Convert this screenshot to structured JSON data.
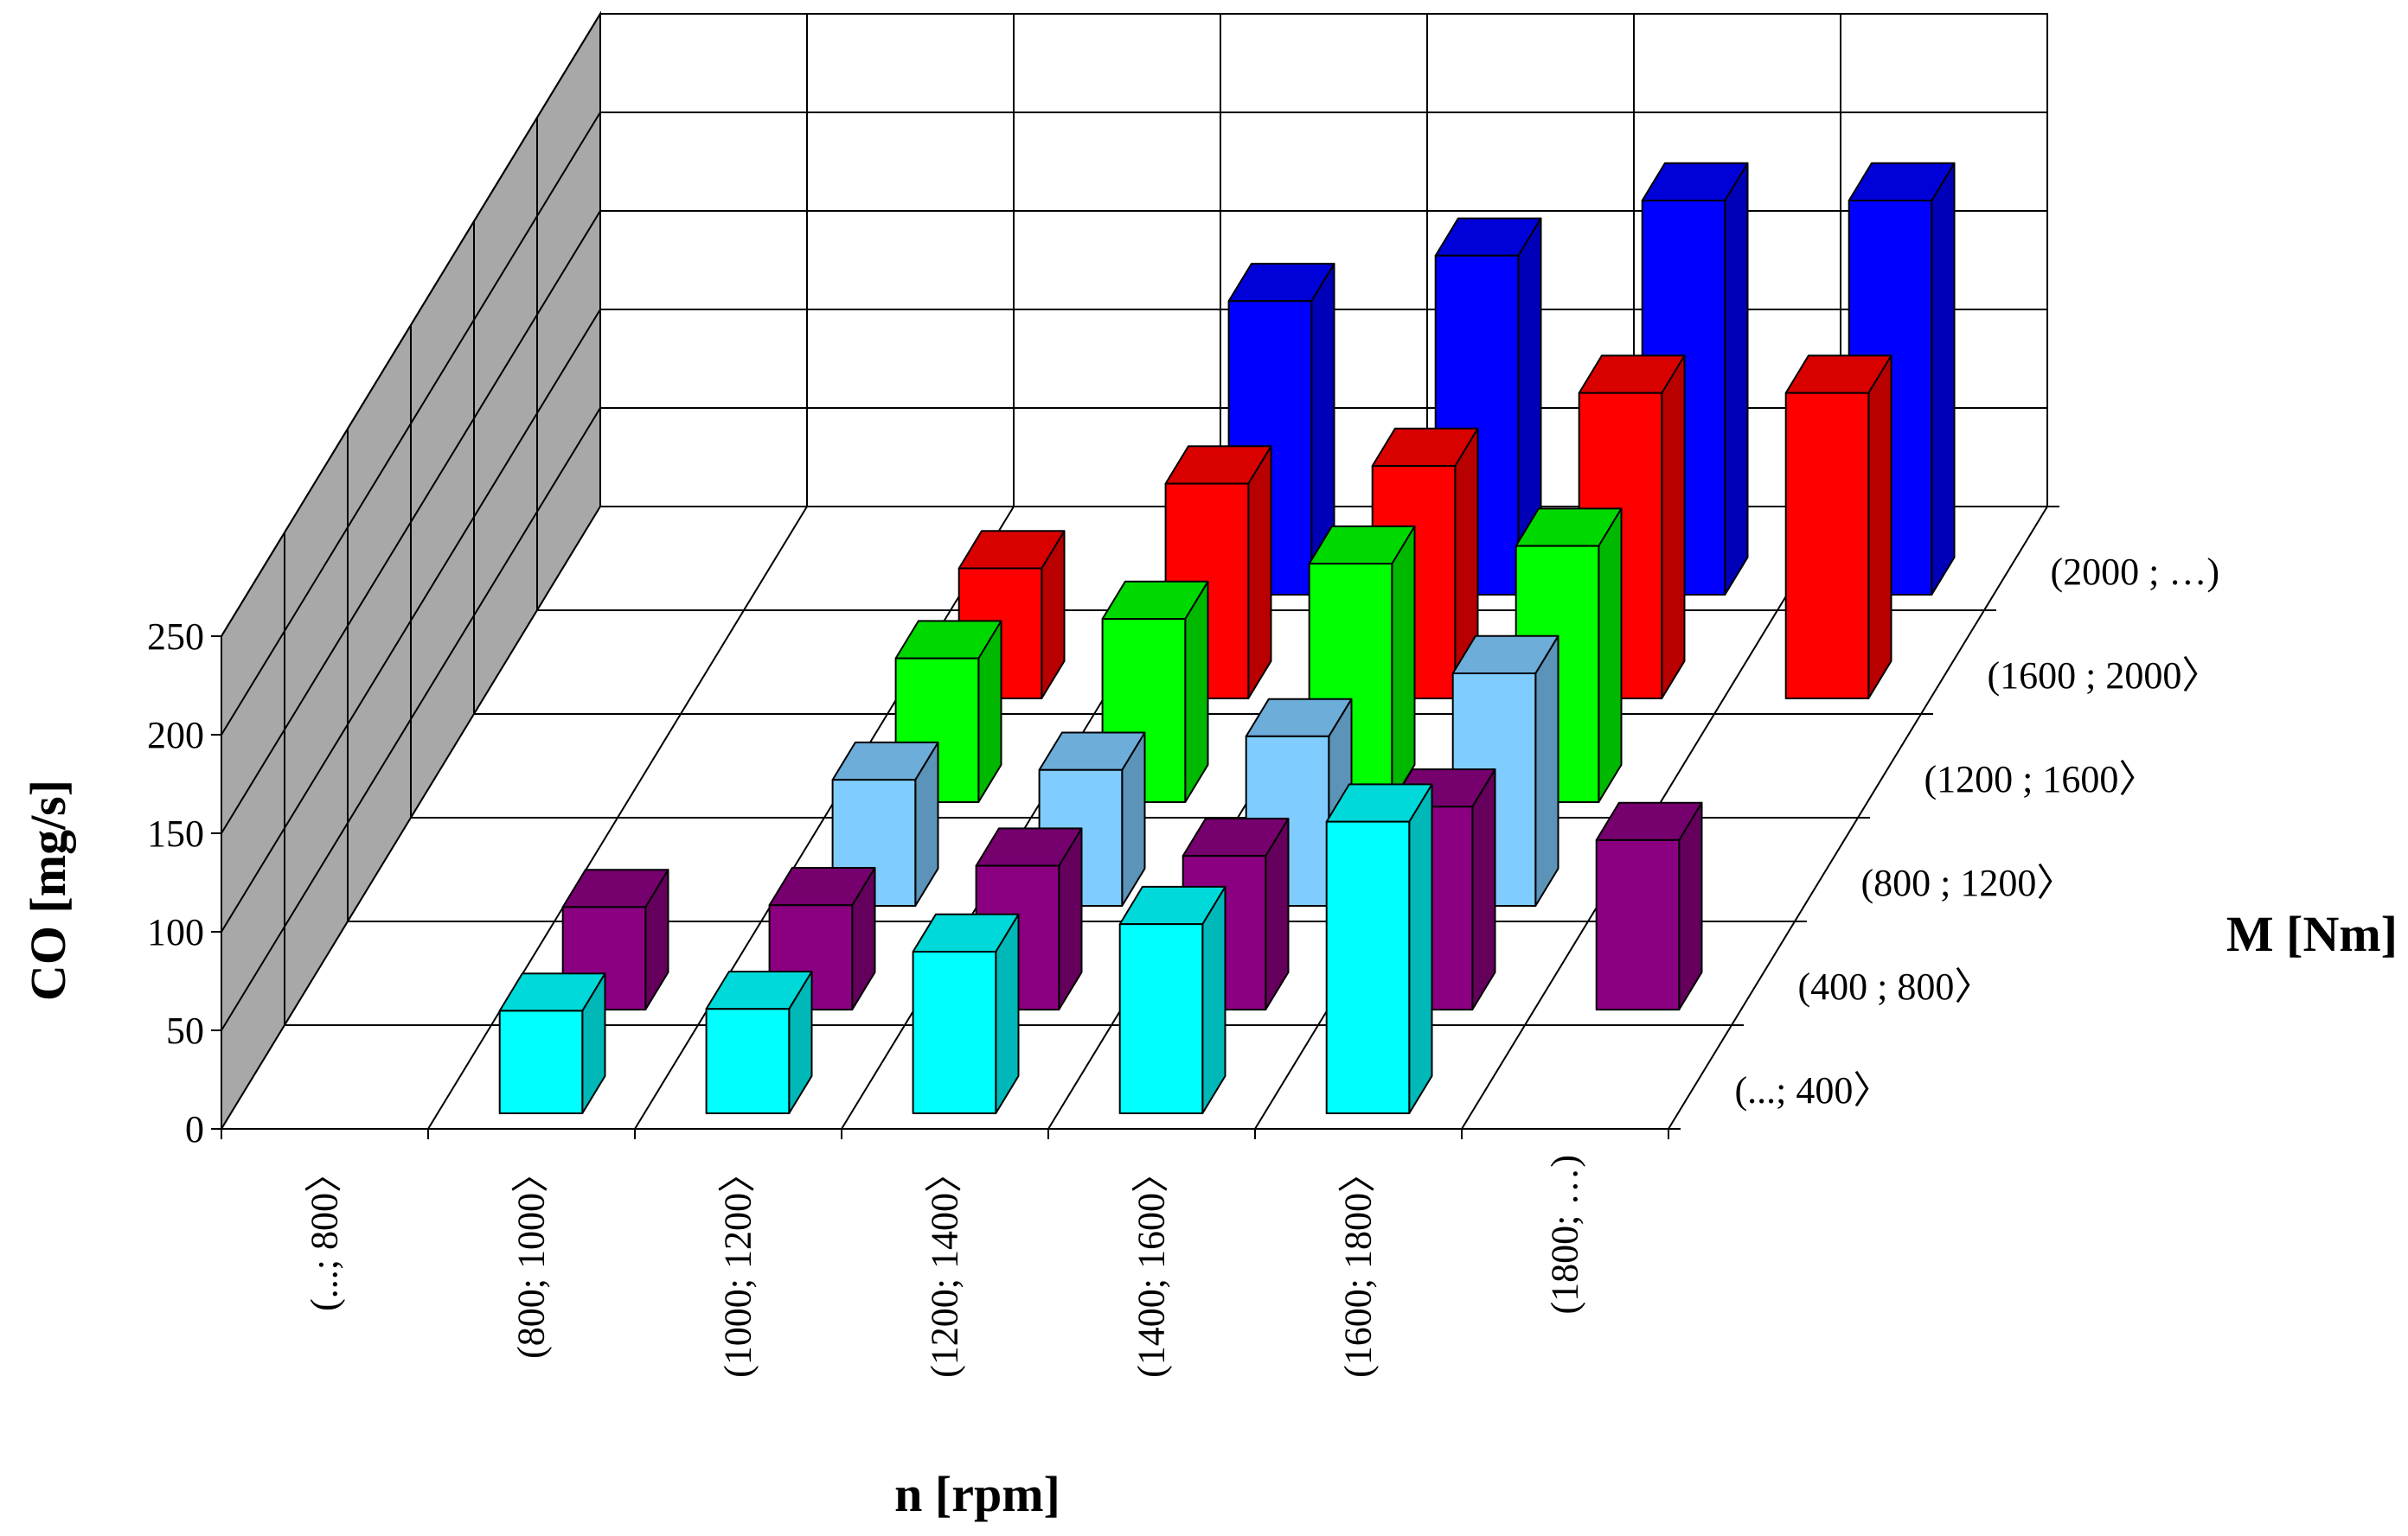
{
  "chart_data": {
    "type": "bar3d",
    "ylabel": "CO [mg/s]",
    "xlabel": "n [rpm]",
    "zlabel": "M [Nm]",
    "ylim": [
      0,
      250
    ],
    "yticks": [
      "0",
      "50",
      "100",
      "150",
      "200",
      "250"
    ],
    "categories": [
      "(...; 800〉",
      "(800; 1000〉",
      "(1000; 1200〉",
      "(1200; 1400〉",
      "(1400; 1600〉",
      "(1600; 1800〉",
      "(1800; …)"
    ],
    "series": [
      {
        "name": "(...; 400〉",
        "color": "#00ffff",
        "values": [
          null,
          52,
          53,
          82,
          96,
          148,
          null
        ]
      },
      {
        "name": "(400 ; 800〉",
        "color": "#8b0080",
        "values": [
          null,
          52,
          53,
          73,
          78,
          103,
          86
        ]
      },
      {
        "name": "(800 ; 1200〉",
        "color": "#80ccff",
        "values": [
          null,
          null,
          64,
          69,
          86,
          118,
          null
        ]
      },
      {
        "name": "(1200 ; 1600〉",
        "color": "#00ff00",
        "values": [
          null,
          null,
          73,
          93,
          121,
          130,
          null
        ]
      },
      {
        "name": "(1600 ; 2000〉",
        "color": "#ff0000",
        "values": [
          null,
          null,
          66,
          109,
          118,
          155,
          155
        ]
      },
      {
        "name": "(2000 ; …)",
        "color": "#0000ff",
        "values": [
          null,
          null,
          null,
          149,
          172,
          200,
          200
        ]
      }
    ]
  }
}
